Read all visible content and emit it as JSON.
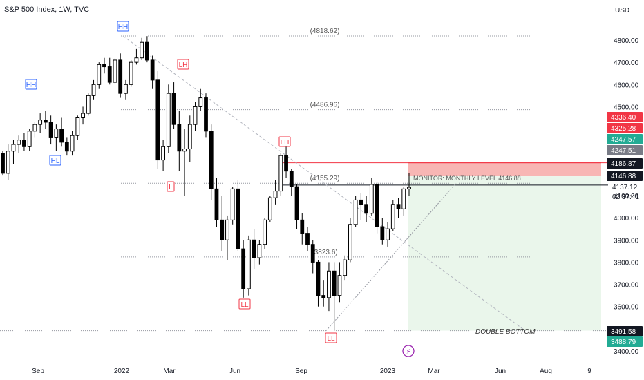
{
  "chart_title": "S&P 500 Index, 1W, TVC",
  "currency": "USD",
  "chart_data": {
    "type": "candlestick",
    "title": "S&P 500 Index, 1W, TVC",
    "ylim": [
      3360,
      4880
    ],
    "y_ticks": [
      4800,
      4700,
      4600,
      4500,
      4400,
      4300,
      4200,
      4100,
      4000,
      3900,
      3800,
      3700,
      3600,
      3500,
      3400
    ],
    "x_ticks": [
      "Sep",
      "2022",
      "Mar",
      "Jun",
      "Sep",
      "2023",
      "Mar",
      "Jun",
      "Aug",
      "9"
    ],
    "candles_ohlc": [
      [
        4290,
        4300,
        4190,
        4200
      ],
      [
        4200,
        4330,
        4170,
        4300
      ],
      [
        4300,
        4350,
        4240,
        4330
      ],
      [
        4330,
        4370,
        4290,
        4350
      ],
      [
        4350,
        4380,
        4300,
        4320
      ],
      [
        4320,
        4400,
        4300,
        4390
      ],
      [
        4390,
        4430,
        4360,
        4420
      ],
      [
        4420,
        4470,
        4380,
        4440
      ],
      [
        4440,
        4480,
        4400,
        4430
      ],
      [
        4430,
        4460,
        4330,
        4360
      ],
      [
        4360,
        4420,
        4300,
        4400
      ],
      [
        4400,
        4450,
        4320,
        4340
      ],
      [
        4340,
        4360,
        4280,
        4300
      ],
      [
        4300,
        4390,
        4280,
        4370
      ],
      [
        4370,
        4460,
        4350,
        4450
      ],
      [
        4450,
        4500,
        4420,
        4470
      ],
      [
        4470,
        4560,
        4460,
        4550
      ],
      [
        4550,
        4620,
        4530,
        4600
      ],
      [
        4600,
        4700,
        4580,
        4690
      ],
      [
        4690,
        4720,
        4650,
        4680
      ],
      [
        4680,
        4720,
        4600,
        4610
      ],
      [
        4610,
        4720,
        4600,
        4710
      ],
      [
        4710,
        4740,
        4540,
        4560
      ],
      [
        4560,
        4620,
        4530,
        4600
      ],
      [
        4600,
        4710,
        4590,
        4700
      ],
      [
        4700,
        4760,
        4690,
        4720
      ],
      [
        4720,
        4810,
        4710,
        4790
      ],
      [
        4790,
        4818,
        4700,
        4710
      ],
      [
        4710,
        4730,
        4580,
        4620
      ],
      [
        4620,
        4660,
        4220,
        4260
      ],
      [
        4260,
        4350,
        4210,
        4320
      ],
      [
        4320,
        4600,
        4290,
        4560
      ],
      [
        4560,
        4610,
        4400,
        4420
      ],
      [
        4420,
        4480,
        4210,
        4300
      ],
      [
        4300,
        4400,
        4100,
        4310
      ],
      [
        4310,
        4460,
        4250,
        4420
      ],
      [
        4420,
        4520,
        4390,
        4500
      ],
      [
        4500,
        4580,
        4480,
        4540
      ],
      [
        4540,
        4560,
        4360,
        4390
      ],
      [
        4390,
        4420,
        4080,
        4130
      ],
      [
        4130,
        4180,
        3960,
        3990
      ],
      [
        3990,
        4100,
        3850,
        3900
      ],
      [
        3900,
        4010,
        3810,
        3990
      ],
      [
        3990,
        4140,
        3970,
        4130
      ],
      [
        4130,
        4170,
        3850,
        3860
      ],
      [
        3860,
        3900,
        3640,
        3680
      ],
      [
        3680,
        3920,
        3650,
        3900
      ],
      [
        3900,
        3950,
        3770,
        3820
      ],
      [
        3820,
        3900,
        3790,
        3880
      ],
      [
        3880,
        4000,
        3860,
        3990
      ],
      [
        3990,
        4100,
        3980,
        4090
      ],
      [
        4090,
        4170,
        4060,
        4120
      ],
      [
        4120,
        4290,
        4100,
        4280
      ],
      [
        4280,
        4325,
        4180,
        4210
      ],
      [
        4210,
        4220,
        4100,
        4140
      ],
      [
        4140,
        4150,
        3950,
        3990
      ],
      [
        3990,
        4020,
        3880,
        3930
      ],
      [
        3930,
        3960,
        3850,
        3880
      ],
      [
        3880,
        3900,
        3750,
        3800
      ],
      [
        3800,
        3810,
        3600,
        3650
      ],
      [
        3650,
        3720,
        3600,
        3640
      ],
      [
        3640,
        3800,
        3580,
        3760
      ],
      [
        3760,
        3800,
        3491,
        3650
      ],
      [
        3650,
        3800,
        3620,
        3740
      ],
      [
        3740,
        3830,
        3720,
        3810
      ],
      [
        3810,
        4000,
        3800,
        3970
      ],
      [
        3970,
        4100,
        3960,
        4080
      ],
      [
        4080,
        4110,
        3990,
        4060
      ],
      [
        4060,
        4100,
        3980,
        4020
      ],
      [
        4020,
        4180,
        4010,
        4150
      ],
      [
        4150,
        4160,
        3930,
        3960
      ],
      [
        3960,
        4000,
        3880,
        3900
      ],
      [
        3900,
        3980,
        3870,
        3950
      ],
      [
        3950,
        4080,
        3940,
        4060
      ],
      [
        4060,
        4090,
        4000,
        4040
      ],
      [
        4040,
        4140,
        4010,
        4130
      ],
      [
        4130,
        4200,
        4100,
        4137.12
      ]
    ],
    "horizontal_levels": [
      {
        "value": 4818.62,
        "label": "(4818.62)"
      },
      {
        "value": 4486.96,
        "label": "(4486.96)"
      },
      {
        "value": 4155.29,
        "label": "(4155.29)"
      },
      {
        "value": 3823.6,
        "label": "(3823.6)"
      },
      {
        "value": 3491.58,
        "label": ""
      }
    ],
    "swing_labels": [
      "HH",
      "HH",
      "HL",
      "LH",
      "L",
      "LH",
      "LL",
      "LL"
    ],
    "annotations": {
      "monitor": "MONITOR:  MONTHLY LEVEL 4146.88",
      "double_bottom": "DOUBLE BOTTOM"
    },
    "zones": {
      "stop": [
        4186.87,
        4247.51
      ],
      "target": [
        3491.58,
        4186.87
      ]
    },
    "price_tags": [
      {
        "text": "4336.40",
        "value": 4336.4,
        "bg": "#f23645",
        "fg": "#ffffff"
      },
      {
        "text": "4325.28",
        "value": 4325.28,
        "bg": "#f23645",
        "fg": "#ffffff"
      },
      {
        "text": "4247.57",
        "value": 4247.57,
        "bg": "#22ab94",
        "fg": "#ffffff"
      },
      {
        "text": "4247.51",
        "value": 4247.51,
        "bg": "#787b86",
        "fg": "#ffffff"
      },
      {
        "text": "4186.87",
        "value": 4186.87,
        "bg": "#131722",
        "fg": "#ffffff"
      },
      {
        "text": "4146.88",
        "value": 4146.88,
        "bg": "#131722",
        "fg": "#ffffff"
      },
      {
        "text": "3491.58",
        "value": 3491.58,
        "bg": "#131722",
        "fg": "#ffffff"
      },
      {
        "text": "3488.79",
        "value": 3488.79,
        "bg": "#22ab94",
        "fg": "#ffffff"
      }
    ],
    "last_price": "4137.12",
    "countdown": "02:37:41"
  },
  "colors": {
    "up": "#ffffff",
    "down": "#000000",
    "grid_dotted": "#9598a1",
    "red_zone": "#f7a9a7",
    "green_zone": "#e8f5e9",
    "label_blue": "#2962ff",
    "label_red": "#f23645"
  }
}
